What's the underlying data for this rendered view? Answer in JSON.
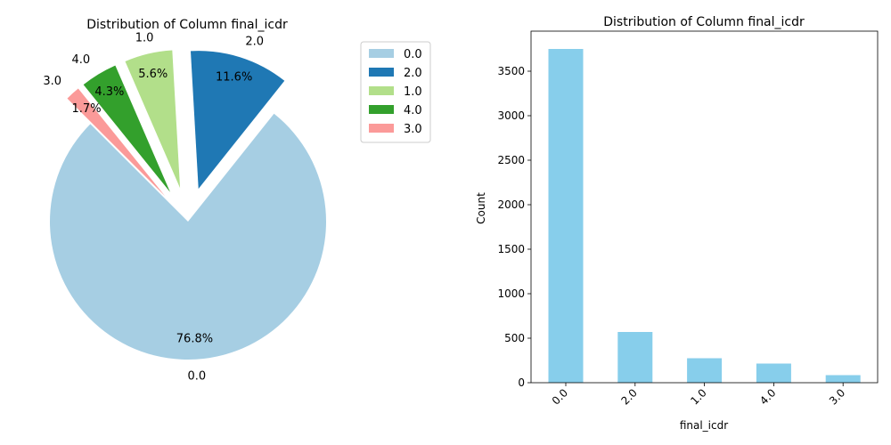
{
  "chart_data": [
    {
      "type": "pie",
      "title": "Distribution of Column final_icdr",
      "categories": [
        "0.0",
        "2.0",
        "1.0",
        "4.0",
        "3.0"
      ],
      "values": [
        76.8,
        11.6,
        5.6,
        4.3,
        1.7
      ],
      "percent_labels": [
        "76.8%",
        "11.6%",
        "5.6%",
        "4.3%",
        "1.7%"
      ],
      "colors": [
        "#a6cee3",
        "#1f78b4",
        "#b2df8a",
        "#33a02c",
        "#fb9a99"
      ],
      "legend": {
        "entries": [
          "0.0",
          "2.0",
          "1.0",
          "4.0",
          "3.0"
        ],
        "placement": "upper-right"
      }
    },
    {
      "type": "bar",
      "title": "Distribution of Column final_icdr",
      "categories": [
        "0.0",
        "2.0",
        "1.0",
        "4.0",
        "3.0"
      ],
      "values": [
        3750,
        570,
        275,
        215,
        85
      ],
      "xlabel": "final_icdr",
      "ylabel": "Count",
      "ylim": [
        0,
        3950
      ],
      "yticks": [
        "0",
        "500",
        "1000",
        "1500",
        "2000",
        "2500",
        "3000",
        "3500"
      ],
      "bar_color": "#87ceeb",
      "grid": false
    }
  ]
}
